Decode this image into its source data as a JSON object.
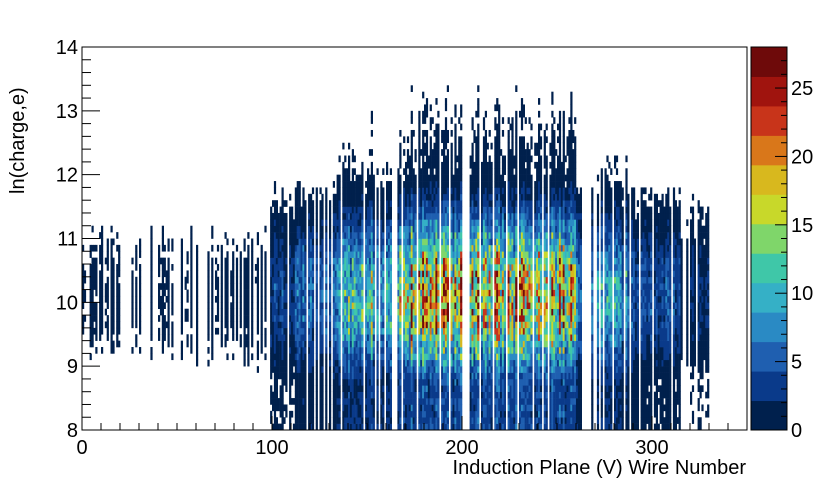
{
  "chart_data": {
    "type": "heatmap",
    "title": "",
    "xlabel": "Induction Plane (V) Wire Number",
    "ylabel": "ln(charge,e)",
    "xlim": [
      0,
      350
    ],
    "ylim": [
      8,
      14
    ],
    "x_ticks": [
      "0",
      "100",
      "200",
      "300"
    ],
    "y_ticks": [
      "8",
      "9",
      "10",
      "11",
      "12",
      "13",
      "14"
    ],
    "z_range": [
      0,
      28
    ],
    "colorbar_ticks": [
      "0",
      "5",
      "10",
      "15",
      "20",
      "25"
    ],
    "x_bins": 350,
    "y_bins": 60,
    "grid": false,
    "legend": "colorbar right",
    "colormap": [
      "#00204d",
      "#0a3a8a",
      "#1f5fb0",
      "#2a8ac4",
      "#35b0c6",
      "#3fc7a8",
      "#7fd66a",
      "#c8d82a",
      "#d8b81e",
      "#d9771a",
      "#c8341a",
      "#a0140e",
      "#6e0a0a"
    ],
    "density_description": {
      "empty_wire_columns": [
        97,
        98,
        163,
        164,
        165,
        200,
        201,
        202,
        203,
        263,
        264,
        265,
        266,
        267
      ],
      "peak_region_wire": [
        170,
        260
      ],
      "peak_region_ln_charge": [
        9.5,
        11.0
      ],
      "peak_count": 28,
      "sparse_region_wire": [
        0,
        96
      ],
      "sparse_region_ln_charge": [
        8.2,
        13.7
      ]
    }
  }
}
